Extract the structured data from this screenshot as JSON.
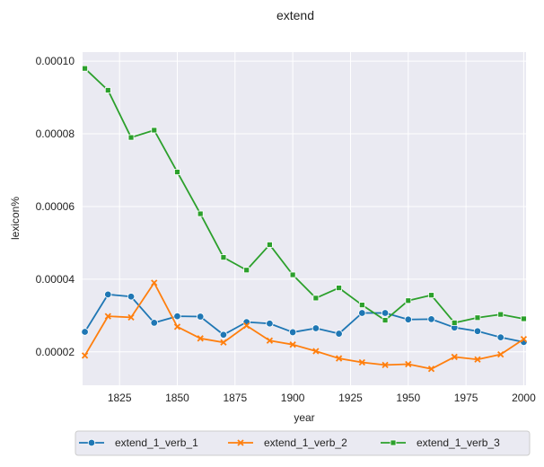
{
  "chart_data": {
    "type": "line",
    "title": "extend",
    "xlabel": "year",
    "ylabel": "lexicon%",
    "xlim": [
      1809,
      2001
    ],
    "ylim": [
      1.08e-05,
      0.0001025
    ],
    "xticks": [
      1825,
      1850,
      1875,
      1900,
      1925,
      1950,
      1975,
      2000
    ],
    "xtick_labels": [
      "1825",
      "1850",
      "1875",
      "1900",
      "1925",
      "1950",
      "1975",
      "2000"
    ],
    "yticks": [
      2e-05,
      4e-05,
      6e-05,
      8e-05,
      0.0001
    ],
    "ytick_labels": [
      "0.00002",
      "0.00004",
      "0.00006",
      "0.00008",
      "0.00010"
    ],
    "grid": true,
    "legend_position": "bottom-center",
    "x": [
      1810,
      1820,
      1830,
      1840,
      1850,
      1860,
      1870,
      1880,
      1890,
      1900,
      1910,
      1920,
      1930,
      1940,
      1950,
      1960,
      1970,
      1980,
      1990,
      2000
    ],
    "series": [
      {
        "name": "extend_1_verb_1",
        "color": "#1f77b4",
        "marker": "circle",
        "values": [
          2.55e-05,
          3.58e-05,
          3.52e-05,
          2.8e-05,
          2.98e-05,
          2.97e-05,
          2.47e-05,
          2.82e-05,
          2.78e-05,
          2.54e-05,
          2.65e-05,
          2.5e-05,
          3.07e-05,
          3.07e-05,
          2.89e-05,
          2.9e-05,
          2.67e-05,
          2.57e-05,
          2.4e-05,
          2.27e-05
        ]
      },
      {
        "name": "extend_1_verb_2",
        "color": "#ff7f0e",
        "marker": "x",
        "values": [
          1.9e-05,
          2.98e-05,
          2.95e-05,
          3.9e-05,
          2.69e-05,
          2.37e-05,
          2.26e-05,
          2.72e-05,
          2.31e-05,
          2.2e-05,
          2.02e-05,
          1.82e-05,
          1.71e-05,
          1.64e-05,
          1.66e-05,
          1.53e-05,
          1.86e-05,
          1.79e-05,
          1.93e-05,
          2.35e-05
        ]
      },
      {
        "name": "extend_1_verb_3",
        "color": "#2ca02c",
        "marker": "square",
        "values": [
          9.8e-05,
          9.2e-05,
          7.9e-05,
          8.1e-05,
          6.95e-05,
          5.8e-05,
          4.6e-05,
          4.25e-05,
          4.95e-05,
          4.12e-05,
          3.48e-05,
          3.76e-05,
          3.29e-05,
          2.87e-05,
          3.41e-05,
          3.56e-05,
          2.8e-05,
          2.94e-05,
          3.03e-05,
          2.91e-05
        ]
      }
    ]
  }
}
